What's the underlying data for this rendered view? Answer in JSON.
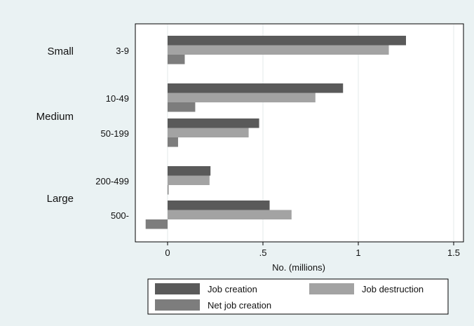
{
  "chart_data": {
    "type": "bar",
    "orientation": "horizontal",
    "groups": [
      {
        "label": "Small",
        "categories": [
          "3-9"
        ]
      },
      {
        "label": "Medium",
        "categories": [
          "10-49",
          "50-199"
        ]
      },
      {
        "label": "Large",
        "categories": [
          "200-499",
          "500-"
        ]
      }
    ],
    "categories": [
      "3-9",
      "10-49",
      "50-199",
      "200-499",
      "500-"
    ],
    "series": [
      {
        "name": "Job creation",
        "color": "#5a5a5a",
        "values": [
          1.25,
          0.92,
          0.48,
          0.225,
          0.535
        ]
      },
      {
        "name": "Job destruction",
        "color": "#a3a3a3",
        "values": [
          1.16,
          0.775,
          0.425,
          0.22,
          0.65
        ]
      },
      {
        "name": "Net job creation",
        "color": "#7d7d7d",
        "values": [
          0.09,
          0.145,
          0.055,
          0.005,
          -0.115
        ]
      }
    ],
    "x_ticks": [
      0,
      0.5,
      1,
      1.5
    ],
    "x_tick_labels": [
      "0",
      ".5",
      "1",
      "1.5"
    ],
    "xlim": [
      -0.18,
      1.53
    ],
    "xlabel": "No. (millions)",
    "title": "",
    "ylabel": "",
    "grid": true,
    "legend_position": "bottom"
  },
  "legend": {
    "items": [
      {
        "label": "Job creation",
        "color": "#5a5a5a"
      },
      {
        "label": "Job destruction",
        "color": "#a3a3a3"
      },
      {
        "label": "Net job creation",
        "color": "#7d7d7d"
      }
    ]
  }
}
